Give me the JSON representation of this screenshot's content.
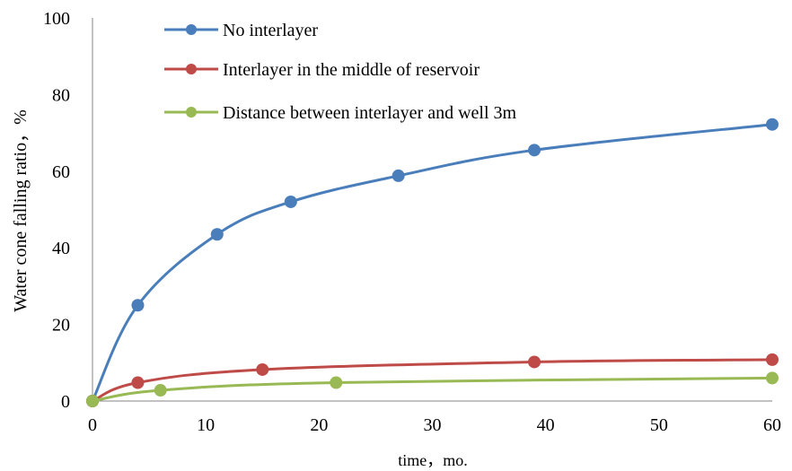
{
  "chart_data": {
    "type": "line",
    "smooth": true,
    "markers": true,
    "title": "",
    "xlabel": "time，mo.",
    "ylabel": "Water cone falling ratio，%",
    "xlim": [
      0,
      60
    ],
    "ylim": [
      0,
      100
    ],
    "x_ticks": [
      "0",
      "10",
      "20",
      "30",
      "40",
      "50",
      "60"
    ],
    "y_ticks": [
      "0",
      "20",
      "40",
      "60",
      "80",
      "100"
    ],
    "grid": false,
    "legend_position": "top-center",
    "series": [
      {
        "name": "No interlayer",
        "color": "#4a7ebb",
        "x": [
          0,
          4,
          11,
          17.5,
          27,
          39,
          60
        ],
        "y": [
          0,
          25,
          43.5,
          52,
          58.8,
          65.5,
          72.2
        ]
      },
      {
        "name": "Interlayer in the middle of reservoir",
        "color": "#be4b48",
        "x": [
          0,
          4,
          15,
          39,
          60
        ],
        "y": [
          0,
          4.8,
          8.2,
          10.2,
          10.8
        ]
      },
      {
        "name": "Distance between interlayer and well 3m",
        "color": "#98b954",
        "x": [
          0,
          6,
          21.5,
          60
        ],
        "y": [
          0,
          2.8,
          4.8,
          6
        ]
      }
    ]
  }
}
